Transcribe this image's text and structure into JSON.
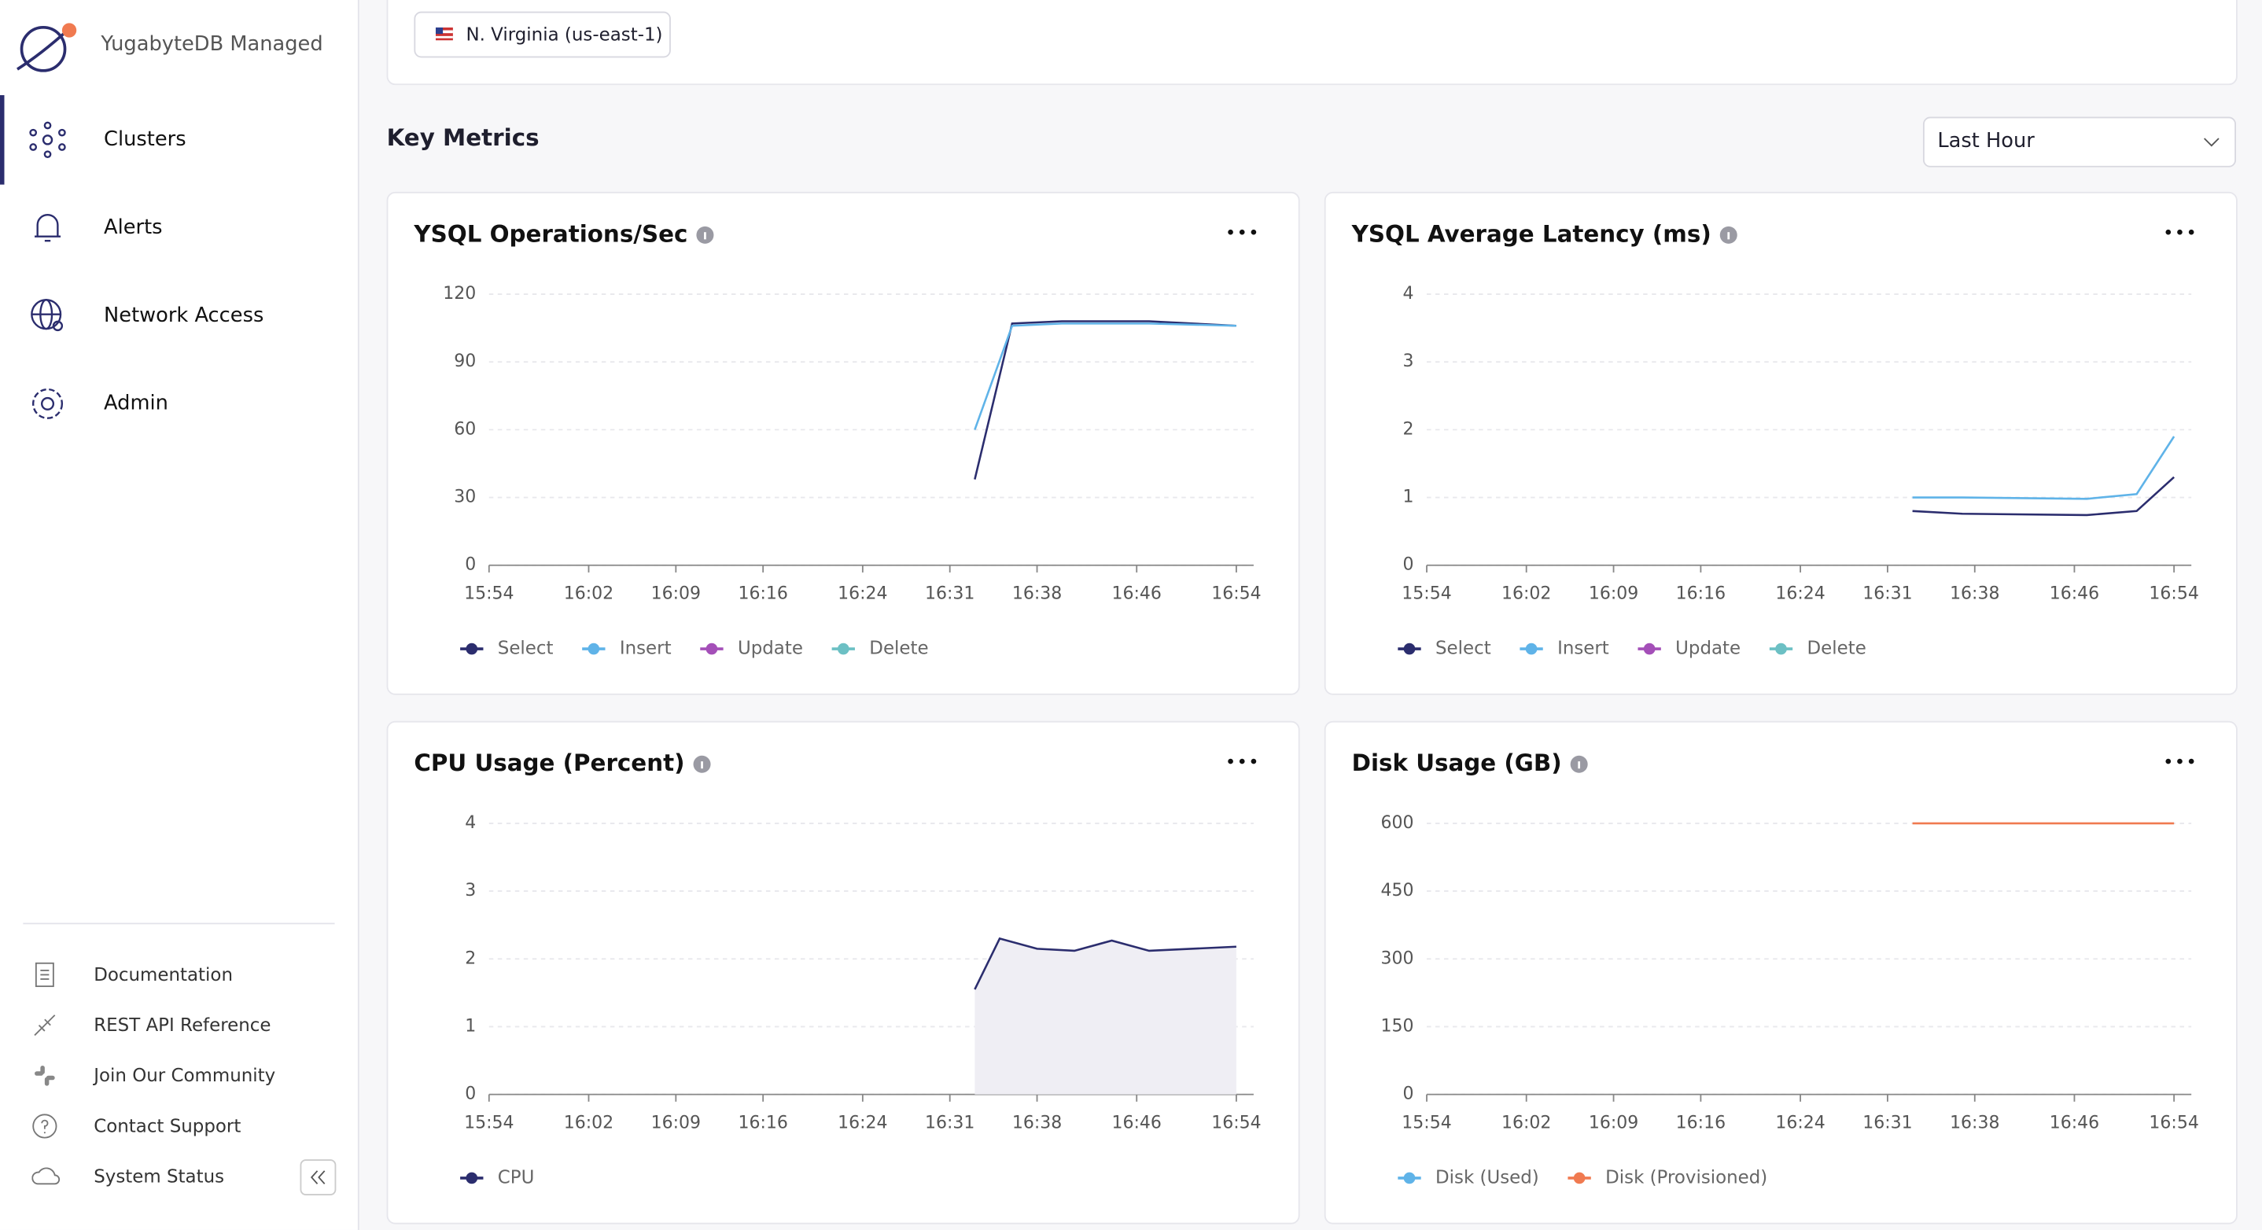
{
  "sidebar": {
    "brand": "YugabyteDB Managed",
    "nav": [
      "Clusters",
      "Alerts",
      "Network Access",
      "Admin"
    ],
    "links": [
      "Documentation",
      "REST API Reference",
      "Join Our Community",
      "Contact Support",
      "System Status"
    ]
  },
  "region": "N. Virginia (us-east-1)",
  "section_title": "Key Metrics",
  "time_range": "Last Hour",
  "chart_data": [
    {
      "type": "line",
      "title": "YSQL Operations/Sec",
      "x": [
        "16:33",
        "16:36",
        "16:40",
        "16:47",
        "16:54"
      ],
      "series": [
        {
          "name": "Select",
          "color": "#2b2d6e",
          "values": [
            38,
            107,
            108,
            108,
            106
          ]
        },
        {
          "name": "Insert",
          "color": "#5fb3e8",
          "values": [
            60,
            106,
            107,
            107,
            106
          ]
        },
        {
          "name": "Update",
          "color": "#a44fb8",
          "values": [
            null,
            null,
            null,
            null,
            null
          ]
        },
        {
          "name": "Delete",
          "color": "#6cc0c4",
          "values": [
            null,
            null,
            null,
            null,
            null
          ]
        }
      ],
      "xlim": [
        "15:54",
        "16:54"
      ],
      "xticks": [
        "15:54",
        "16:02",
        "16:09",
        "16:16",
        "16:24",
        "16:31",
        "16:38",
        "16:46",
        "16:54"
      ],
      "ylim": [
        0,
        120
      ],
      "yticks": [
        0,
        30,
        60,
        90,
        120
      ],
      "grid": true
    },
    {
      "type": "line",
      "title": "YSQL Average Latency (ms)",
      "x": [
        "16:33",
        "16:37",
        "16:47",
        "16:51",
        "16:54"
      ],
      "series": [
        {
          "name": "Select",
          "color": "#2b2d6e",
          "values": [
            0.8,
            0.76,
            0.74,
            0.8,
            1.3
          ]
        },
        {
          "name": "Insert",
          "color": "#5fb3e8",
          "values": [
            1.0,
            1.0,
            0.98,
            1.05,
            1.9
          ]
        },
        {
          "name": "Update",
          "color": "#a44fb8",
          "values": [
            null,
            null,
            null,
            null,
            null
          ]
        },
        {
          "name": "Delete",
          "color": "#6cc0c4",
          "values": [
            null,
            null,
            null,
            null,
            null
          ]
        }
      ],
      "xlim": [
        "15:54",
        "16:54"
      ],
      "xticks": [
        "15:54",
        "16:02",
        "16:09",
        "16:16",
        "16:24",
        "16:31",
        "16:38",
        "16:46",
        "16:54"
      ],
      "ylim": [
        0,
        4
      ],
      "yticks": [
        0,
        1,
        2,
        3,
        4
      ],
      "grid": true
    },
    {
      "type": "area",
      "title": "CPU Usage (Percent)",
      "x": [
        "16:33",
        "16:35",
        "16:38",
        "16:41",
        "16:44",
        "16:47",
        "16:54"
      ],
      "series": [
        {
          "name": "CPU",
          "color": "#2b2d6e",
          "fill": "#efeef4",
          "values": [
            1.55,
            2.3,
            2.15,
            2.12,
            2.27,
            2.12,
            2.18
          ]
        }
      ],
      "xlim": [
        "15:54",
        "16:54"
      ],
      "xticks": [
        "15:54",
        "16:02",
        "16:09",
        "16:16",
        "16:24",
        "16:31",
        "16:38",
        "16:46",
        "16:54"
      ],
      "ylim": [
        0,
        4
      ],
      "yticks": [
        0,
        1,
        2,
        3,
        4
      ],
      "grid": true
    },
    {
      "type": "line",
      "title": "Disk Usage (GB)",
      "x": [
        "16:33",
        "16:40",
        "16:47",
        "16:54"
      ],
      "series": [
        {
          "name": "Disk (Used)",
          "color": "#5fb3e8",
          "values": [
            null,
            null,
            null,
            null
          ]
        },
        {
          "name": "Disk (Provisioned)",
          "color": "#f07a50",
          "values": [
            600,
            600,
            600,
            600
          ]
        }
      ],
      "xlim": [
        "15:54",
        "16:54"
      ],
      "xticks": [
        "15:54",
        "16:02",
        "16:09",
        "16:16",
        "16:24",
        "16:31",
        "16:38",
        "16:46",
        "16:54"
      ],
      "ylim": [
        0,
        600
      ],
      "yticks": [
        0,
        150,
        300,
        450,
        600
      ],
      "grid": true
    }
  ]
}
